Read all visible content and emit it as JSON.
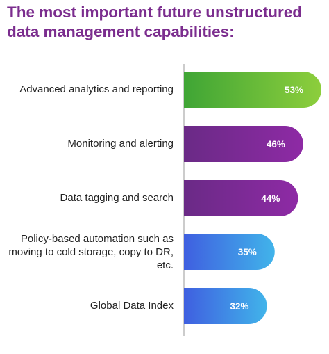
{
  "chart_data": {
    "type": "bar",
    "orientation": "horizontal",
    "title": "The most important future unstructured data management capabilities:",
    "categories": [
      "Advanced analytics and reporting",
      "Monitoring and alerting",
      "Data tagging and search",
      "Policy-based automation such as moving to cold storage, copy to DR, etc.",
      "Global Data Index"
    ],
    "values": [
      53,
      46,
      44,
      35,
      32
    ],
    "value_labels": [
      "53%",
      "46%",
      "44%",
      "35%",
      "32%"
    ],
    "unit": "%",
    "xlim": [
      0,
      53
    ],
    "grid": false,
    "legend": "none",
    "bar_gradients": [
      [
        "#3fa535",
        "#8dce3c"
      ],
      [
        "#6a2a86",
        "#8e2aa5"
      ],
      [
        "#6a2a86",
        "#8e2aa5"
      ],
      [
        "#3f5fe0",
        "#41b4ea"
      ],
      [
        "#3f5fe0",
        "#41b4ea"
      ]
    ],
    "colors": {
      "title": "#7b2d8e",
      "label": "#222222",
      "value_text": "#ffffff",
      "axis_line": "#999999"
    }
  }
}
